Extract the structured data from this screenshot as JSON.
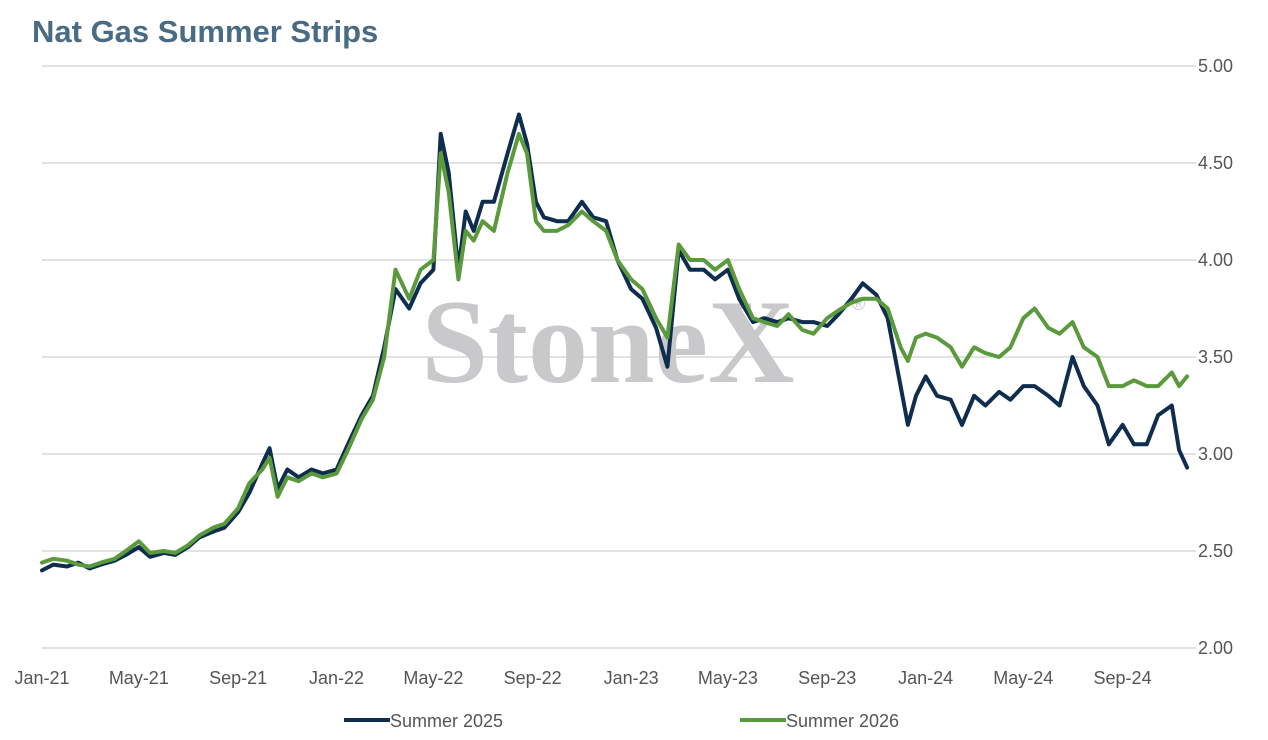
{
  "chart_data": {
    "type": "line",
    "title": "Nat Gas Summer Strips",
    "x_ticks": [
      "Jan-21",
      "May-21",
      "Sep-21",
      "Jan-22",
      "May-22",
      "Sep-22",
      "Jan-23",
      "May-23",
      "Sep-23",
      "Jan-24",
      "May-24",
      "Sep-24"
    ],
    "y_ticks": [
      "2.00",
      "2.50",
      "3.00",
      "3.50",
      "4.00",
      "4.50",
      "5.00"
    ],
    "ylim": [
      2.0,
      5.0
    ],
    "xlim": [
      "2021-01-01",
      "2024-12-01"
    ],
    "grid": "horizontal",
    "y_axis_side": "right",
    "legend_position": "bottom",
    "watermark": "StoneX",
    "series": [
      {
        "name": "Summer 2025",
        "color": "#0f2d4e",
        "x": [
          "2021-01-01",
          "2021-01-15",
          "2021-02-01",
          "2021-02-15",
          "2021-03-01",
          "2021-03-15",
          "2021-04-01",
          "2021-04-15",
          "2021-05-01",
          "2021-05-15",
          "2021-06-01",
          "2021-06-15",
          "2021-07-01",
          "2021-07-15",
          "2021-08-01",
          "2021-08-15",
          "2021-09-01",
          "2021-09-15",
          "2021-10-01",
          "2021-10-10",
          "2021-10-20",
          "2021-11-01",
          "2021-11-15",
          "2021-12-01",
          "2021-12-15",
          "2022-01-01",
          "2022-01-15",
          "2022-02-01",
          "2022-02-15",
          "2022-03-01",
          "2022-03-15",
          "2022-04-01",
          "2022-04-15",
          "2022-05-01",
          "2022-05-10",
          "2022-05-20",
          "2022-06-01",
          "2022-06-10",
          "2022-06-20",
          "2022-07-01",
          "2022-07-15",
          "2022-08-01",
          "2022-08-15",
          "2022-08-25",
          "2022-09-05",
          "2022-09-15",
          "2022-10-01",
          "2022-10-15",
          "2022-11-01",
          "2022-11-15",
          "2022-12-01",
          "2022-12-15",
          "2023-01-01",
          "2023-01-15",
          "2023-02-01",
          "2023-02-15",
          "2023-03-01",
          "2023-03-15",
          "2023-04-01",
          "2023-04-15",
          "2023-05-01",
          "2023-05-15",
          "2023-06-01",
          "2023-06-15",
          "2023-07-01",
          "2023-07-15",
          "2023-08-01",
          "2023-08-15",
          "2023-09-01",
          "2023-09-15",
          "2023-10-01",
          "2023-10-15",
          "2023-11-01",
          "2023-11-15",
          "2023-12-01",
          "2023-12-10",
          "2023-12-20",
          "2024-01-01",
          "2024-01-15",
          "2024-02-01",
          "2024-02-15",
          "2024-03-01",
          "2024-03-15",
          "2024-04-01",
          "2024-04-15",
          "2024-05-01",
          "2024-05-15",
          "2024-06-01",
          "2024-06-15",
          "2024-07-01",
          "2024-07-15",
          "2024-08-01",
          "2024-08-15",
          "2024-09-01",
          "2024-09-15",
          "2024-10-01",
          "2024-10-15",
          "2024-11-01",
          "2024-11-10",
          "2024-11-20"
        ],
        "values": [
          2.4,
          2.43,
          2.42,
          2.44,
          2.41,
          2.43,
          2.45,
          2.48,
          2.52,
          2.47,
          2.49,
          2.48,
          2.52,
          2.57,
          2.6,
          2.62,
          2.7,
          2.8,
          2.95,
          3.03,
          2.82,
          2.92,
          2.88,
          2.92,
          2.9,
          2.92,
          3.05,
          3.2,
          3.3,
          3.55,
          3.85,
          3.75,
          3.88,
          3.95,
          4.65,
          4.45,
          3.95,
          4.25,
          4.15,
          4.3,
          4.3,
          4.55,
          4.75,
          4.6,
          4.3,
          4.22,
          4.2,
          4.2,
          4.3,
          4.22,
          4.2,
          4.0,
          3.85,
          3.8,
          3.65,
          3.45,
          4.05,
          3.95,
          3.95,
          3.9,
          3.95,
          3.8,
          3.68,
          3.7,
          3.68,
          3.7,
          3.68,
          3.68,
          3.66,
          3.72,
          3.8,
          3.88,
          3.82,
          3.7,
          3.35,
          3.15,
          3.3,
          3.4,
          3.3,
          3.28,
          3.15,
          3.3,
          3.25,
          3.32,
          3.28,
          3.35,
          3.35,
          3.3,
          3.25,
          3.5,
          3.35,
          3.25,
          3.05,
          3.15,
          3.05,
          3.05,
          3.2,
          3.25,
          3.02,
          2.93
        ]
      },
      {
        "name": "Summer 2026",
        "color": "#5a9a3c",
        "x": [
          "2021-01-01",
          "2021-01-15",
          "2021-02-01",
          "2021-02-15",
          "2021-03-01",
          "2021-03-15",
          "2021-04-01",
          "2021-04-15",
          "2021-05-01",
          "2021-05-15",
          "2021-06-01",
          "2021-06-15",
          "2021-07-01",
          "2021-07-15",
          "2021-08-01",
          "2021-08-15",
          "2021-09-01",
          "2021-09-15",
          "2021-10-01",
          "2021-10-10",
          "2021-10-20",
          "2021-11-01",
          "2021-11-15",
          "2021-12-01",
          "2021-12-15",
          "2022-01-01",
          "2022-01-15",
          "2022-02-01",
          "2022-02-15",
          "2022-03-01",
          "2022-03-15",
          "2022-04-01",
          "2022-04-15",
          "2022-05-01",
          "2022-05-10",
          "2022-05-20",
          "2022-06-01",
          "2022-06-10",
          "2022-06-20",
          "2022-07-01",
          "2022-07-15",
          "2022-08-01",
          "2022-08-15",
          "2022-08-25",
          "2022-09-05",
          "2022-09-15",
          "2022-10-01",
          "2022-10-15",
          "2022-11-01",
          "2022-11-15",
          "2022-12-01",
          "2022-12-15",
          "2023-01-01",
          "2023-01-15",
          "2023-02-01",
          "2023-02-15",
          "2023-03-01",
          "2023-03-15",
          "2023-04-01",
          "2023-04-15",
          "2023-05-01",
          "2023-05-15",
          "2023-06-01",
          "2023-06-15",
          "2023-07-01",
          "2023-07-15",
          "2023-08-01",
          "2023-08-15",
          "2023-09-01",
          "2023-09-15",
          "2023-10-01",
          "2023-10-15",
          "2023-11-01",
          "2023-11-15",
          "2023-12-01",
          "2023-12-10",
          "2023-12-20",
          "2024-01-01",
          "2024-01-15",
          "2024-02-01",
          "2024-02-15",
          "2024-03-01",
          "2024-03-15",
          "2024-04-01",
          "2024-04-15",
          "2024-05-01",
          "2024-05-15",
          "2024-06-01",
          "2024-06-15",
          "2024-07-01",
          "2024-07-15",
          "2024-08-01",
          "2024-08-15",
          "2024-09-01",
          "2024-09-15",
          "2024-10-01",
          "2024-10-15",
          "2024-11-01",
          "2024-11-10",
          "2024-11-20"
        ],
        "values": [
          2.44,
          2.46,
          2.45,
          2.43,
          2.42,
          2.44,
          2.46,
          2.5,
          2.55,
          2.49,
          2.5,
          2.49,
          2.53,
          2.58,
          2.62,
          2.64,
          2.72,
          2.85,
          2.92,
          2.98,
          2.78,
          2.88,
          2.86,
          2.9,
          2.88,
          2.9,
          3.02,
          3.18,
          3.28,
          3.5,
          3.95,
          3.8,
          3.95,
          4.0,
          4.55,
          4.35,
          3.9,
          4.15,
          4.1,
          4.2,
          4.15,
          4.45,
          4.65,
          4.55,
          4.2,
          4.15,
          4.15,
          4.18,
          4.25,
          4.2,
          4.15,
          4.0,
          3.9,
          3.85,
          3.7,
          3.6,
          4.08,
          4.0,
          4.0,
          3.95,
          4.0,
          3.85,
          3.7,
          3.68,
          3.66,
          3.72,
          3.64,
          3.62,
          3.7,
          3.74,
          3.78,
          3.8,
          3.8,
          3.75,
          3.55,
          3.48,
          3.6,
          3.62,
          3.6,
          3.55,
          3.45,
          3.55,
          3.52,
          3.5,
          3.55,
          3.7,
          3.75,
          3.65,
          3.62,
          3.68,
          3.55,
          3.5,
          3.35,
          3.35,
          3.38,
          3.35,
          3.35,
          3.42,
          3.35,
          3.4
        ]
      }
    ]
  }
}
